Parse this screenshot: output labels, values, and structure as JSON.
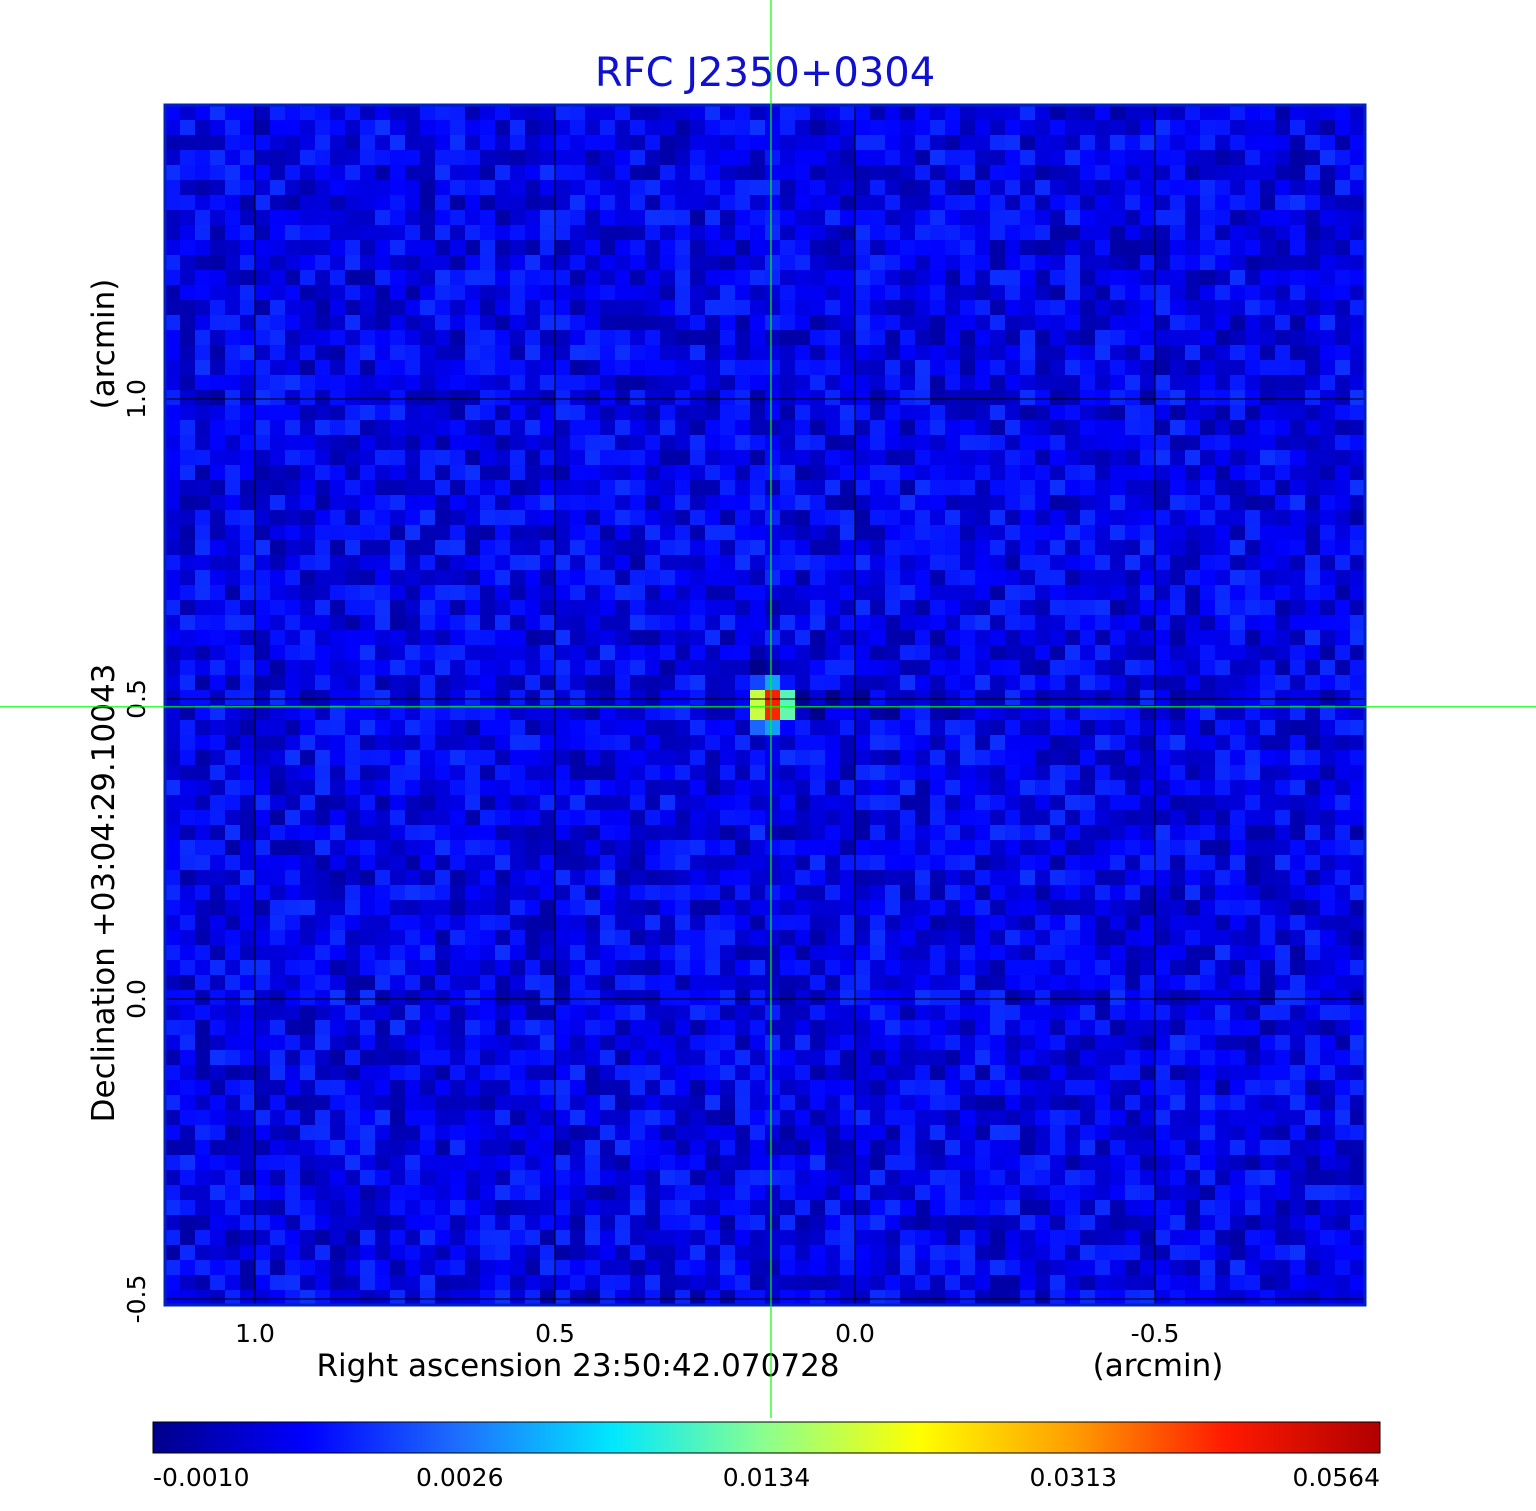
{
  "chart_data": {
    "type": "heatmap",
    "title": "RFC J2350+0304",
    "title_color": "#1010d0",
    "xlabel": "Right ascension  23:50:42.070728",
    "xunit": "(arcmin)",
    "ylabel": "Declination  +03:04:29.10043",
    "yunit": "(arcmin)",
    "xlim": [
      1.15,
      -0.85
    ],
    "ylim": [
      -0.51,
      1.49
    ],
    "x_ticks": [
      1.0,
      0.5,
      0.0,
      -0.5
    ],
    "x_tick_labels": [
      "1.0",
      "0.5",
      "0.0",
      "-0.5"
    ],
    "y_ticks": [
      -0.5,
      0.0,
      0.5,
      1.0
    ],
    "y_tick_labels": [
      "-0.5",
      "0.0",
      "0.5",
      "1.0"
    ],
    "grid": true,
    "colormap": "jet",
    "colormap_stops": [
      "#00008b",
      "#0000ff",
      "#1e6fff",
      "#00e8ff",
      "#8dff8d",
      "#ffff00",
      "#ff9d00",
      "#ff1a00",
      "#b00000"
    ],
    "colorbar_tick_values": [
      -0.001,
      0.0026,
      0.0134,
      0.0313,
      0.0564
    ],
    "colorbar_tick_labels": [
      "-0.0010",
      "0.0026",
      "0.0134",
      "0.0313",
      "0.0564"
    ],
    "colorbar_position": "bottom",
    "background_level": 0.0005,
    "source": {
      "x": 0.14,
      "y": 0.49,
      "peak": 0.0564
    },
    "crosshair": {
      "x": 0.14,
      "y": 0.487,
      "color": "#00ff00"
    },
    "grid_color": "#000000"
  }
}
